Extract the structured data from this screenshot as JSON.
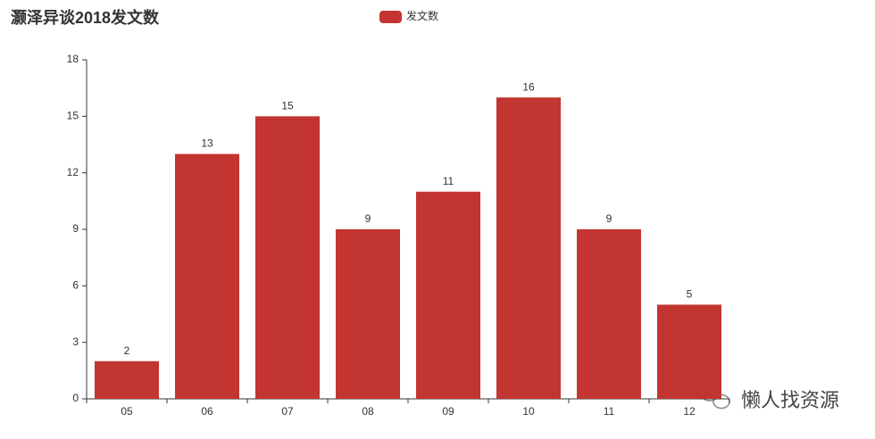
{
  "chart_data": {
    "type": "bar",
    "title": "灏泽异谈2018发文数",
    "categories": [
      "05",
      "06",
      "07",
      "08",
      "09",
      "10",
      "11",
      "12"
    ],
    "series": [
      {
        "name": "发文数",
        "color": "#c23531",
        "values": [
          2,
          13,
          15,
          9,
          11,
          16,
          9,
          5
        ]
      }
    ],
    "ylim": [
      0,
      18
    ],
    "yticks": [
      0,
      3,
      6,
      9,
      12,
      15,
      18
    ],
    "grid": false,
    "legend": "top"
  },
  "watermark": "懒人找资源"
}
